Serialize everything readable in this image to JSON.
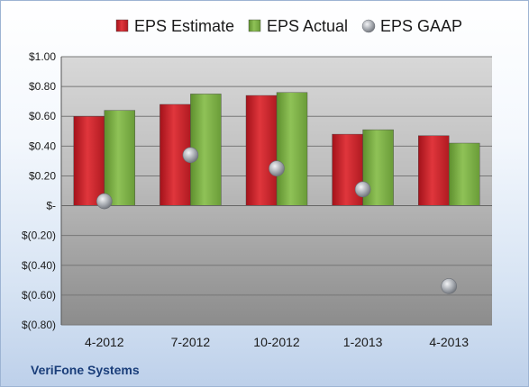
{
  "chart_data": {
    "type": "bar",
    "categories": [
      "4-2012",
      "7-2012",
      "10-2012",
      "1-2013",
      "4-2013"
    ],
    "series": [
      {
        "name": "EPS Estimate",
        "kind": "bar",
        "color": "#d0242b",
        "values": [
          0.6,
          0.68,
          0.74,
          0.48,
          0.47
        ]
      },
      {
        "name": "EPS Actual",
        "kind": "bar",
        "color": "#7cb144",
        "values": [
          0.64,
          0.75,
          0.76,
          0.51,
          0.42
        ]
      },
      {
        "name": "EPS GAAP",
        "kind": "marker",
        "color": "#a9adb3",
        "values": [
          0.03,
          0.34,
          0.25,
          0.11,
          -0.54
        ]
      }
    ],
    "ylim": [
      -0.8,
      1.0
    ],
    "yticks": [
      {
        "value": 1.0,
        "label": "$1.00"
      },
      {
        "value": 0.8,
        "label": "$0.80"
      },
      {
        "value": 0.6,
        "label": "$0.60"
      },
      {
        "value": 0.4,
        "label": "$0.40"
      },
      {
        "value": 0.2,
        "label": "$0.20"
      },
      {
        "value": 0.0,
        "label": "$-"
      },
      {
        "value": -0.2,
        "label": "$(0.20)"
      },
      {
        "value": -0.4,
        "label": "$(0.40)"
      },
      {
        "value": -0.6,
        "label": "$(0.60)"
      },
      {
        "value": -0.8,
        "label": "$(0.80)"
      }
    ],
    "grid": true,
    "legend_position": "top"
  },
  "footer": {
    "company": "VeriFone Systems"
  }
}
